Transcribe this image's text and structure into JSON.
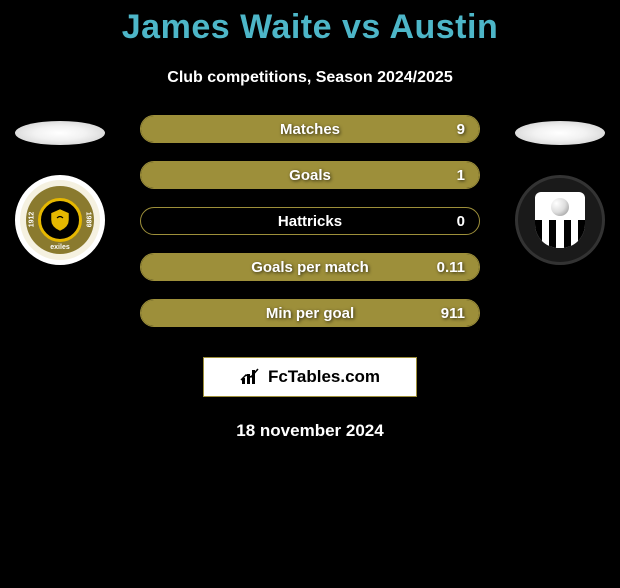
{
  "title": "James Waite vs Austin",
  "subtitle": "Club competitions, Season 2024/2025",
  "colors": {
    "title": "#4db6c8",
    "border": "#9d8f3a",
    "fill": "#9d8f3a",
    "background": "#000000",
    "text": "#ffffff",
    "brandBorder": "#9d8f3a",
    "brandBg": "#ffffff",
    "brandText": "#000000"
  },
  "sides": {
    "left": {
      "club": "Newport County AFC",
      "badgeText": "exiles",
      "leftYear": "1912",
      "rightYear": "1989"
    },
    "right": {
      "club": "Notts County FC"
    }
  },
  "stats": [
    {
      "label": "Matches",
      "value": "9",
      "fillPercent": 100
    },
    {
      "label": "Goals",
      "value": "1",
      "fillPercent": 100
    },
    {
      "label": "Hattricks",
      "value": "0",
      "fillPercent": 0
    },
    {
      "label": "Goals per match",
      "value": "0.11",
      "fillPercent": 100
    },
    {
      "label": "Min per goal",
      "value": "911",
      "fillPercent": 100
    }
  ],
  "brand": {
    "icon": "chart",
    "text": "FcTables.com"
  },
  "date": "18 november 2024"
}
